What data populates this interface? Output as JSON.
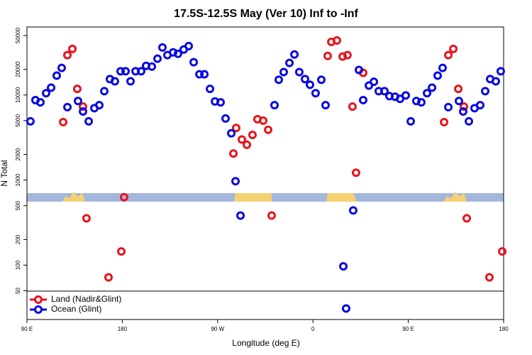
{
  "chart_data": {
    "type": "scatter",
    "title": "17.5S-12.5S May (Ver 10)   Inf to -Inf",
    "x_label": "Longitude (deg E)",
    "y_label": "N Total",
    "yscale": "log",
    "legend": "lower left",
    "xlim": [
      90,
      540
    ],
    "xticks": [
      {
        "value": 90,
        "label": "90 E"
      },
      {
        "value": 180,
        "label": "180"
      },
      {
        "value": 270,
        "label": "90 W"
      },
      {
        "value": 360,
        "label": "0"
      },
      {
        "value": 450,
        "label": "90 E"
      },
      {
        "value": 540,
        "label": "180"
      }
    ],
    "ylim": [
      23,
      63000
    ],
    "yticks": [
      50,
      100,
      200,
      500,
      1000,
      2000,
      5000,
      10000,
      20000,
      50000
    ],
    "series": [
      {
        "name": "Land (Nadir&Glint)",
        "color": "#e8141c",
        "x": [
          124.2,
          128.2,
          132.9,
          137.5,
          142.9,
          146.2,
          167.0,
          179.1,
          181.7,
          284.9,
          287.5,
          292.9,
          297.6,
          302.9,
          307.6,
          313.0,
          317.7,
          321.0,
          373.9,
          377.3,
          382.6,
          388.0,
          392.6,
          397.3,
          400.7,
          407.4,
          483.8,
          487.8,
          492.5,
          497.2,
          502.5,
          505.2,
          526.6,
          538.7
        ],
        "values": [
          4800,
          29400,
          34800,
          11800,
          7300,
          355,
          72,
          145,
          630,
          2050,
          4100,
          3000,
          2600,
          3400,
          5200,
          5000,
          3900,
          383,
          28800,
          42100,
          43700,
          28300,
          29400,
          7300,
          1220,
          18200,
          4800,
          29400,
          34800,
          11800,
          7300,
          355,
          72,
          145
        ]
      },
      {
        "name": "Ocean (Glint)",
        "color": "#0a0ae0",
        "x": [
          93.3,
          98.0,
          102.7,
          108.1,
          112.8,
          118.1,
          122.8,
          128.2,
          138.2,
          142.9,
          148.3,
          153.6,
          158.3,
          163.0,
          168.3,
          173.0,
          178.4,
          183.1,
          187.8,
          192.5,
          197.8,
          202.5,
          207.9,
          213.2,
          217.9,
          222.6,
          228.0,
          232.6,
          238.0,
          242.7,
          247.4,
          252.8,
          257.5,
          262.8,
          267.5,
          272.8,
          277.5,
          282.9,
          286.9,
          291.6,
          323.7,
          327.7,
          332.4,
          337.8,
          342.5,
          347.1,
          352.5,
          357.2,
          362.5,
          367.9,
          371.9,
          388.7,
          391.3,
          398.0,
          403.4,
          407.4,
          412.8,
          417.5,
          422.1,
          427.5,
          432.2,
          437.5,
          442.2,
          447.6,
          452.3,
          457.6,
          462.3,
          467.7,
          472.4,
          477.7,
          482.4,
          487.8,
          497.8,
          501.8,
          507.2,
          512.5,
          517.9,
          522.6,
          527.3,
          532.6,
          537.3
        ],
        "values": [
          4900,
          8700,
          8200,
          10500,
          12200,
          16900,
          20800,
          7200,
          8500,
          6400,
          4900,
          7000,
          7600,
          11100,
          15400,
          14500,
          19000,
          19000,
          14500,
          19000,
          19000,
          22000,
          21600,
          26700,
          36200,
          29400,
          31700,
          30500,
          34200,
          37600,
          24300,
          17500,
          17500,
          11800,
          8400,
          8200,
          5300,
          3550,
          970,
          383,
          7600,
          15100,
          18600,
          23800,
          29900,
          18600,
          15400,
          13200,
          10500,
          15100,
          7600,
          97,
          31,
          440,
          19700,
          8700,
          12900,
          14300,
          11100,
          11100,
          9700,
          9550,
          9000,
          9900,
          4900,
          8500,
          8200,
          10500,
          12200,
          16900,
          20800,
          7200,
          8500,
          6400,
          4900,
          7000,
          7600,
          11100,
          15400,
          14500,
          19000
        ]
      }
    ]
  }
}
